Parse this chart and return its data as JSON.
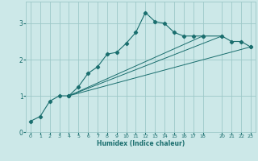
{
  "xlabel": "Humidex (Indice chaleur)",
  "ylabel": "",
  "bg_color": "#cce8e8",
  "grid_color": "#9dc8c8",
  "line_color": "#1a6e6e",
  "xlim": [
    -0.5,
    23.5
  ],
  "ylim": [
    0,
    3.6
  ],
  "xticks": [
    0,
    1,
    2,
    3,
    4,
    5,
    6,
    7,
    8,
    9,
    10,
    11,
    12,
    13,
    14,
    15,
    16,
    17,
    18,
    20,
    21,
    22,
    23
  ],
  "yticks": [
    0,
    1,
    2,
    3
  ],
  "line1_x": [
    0,
    1,
    2,
    3,
    4,
    5,
    6,
    7,
    8,
    9,
    10,
    11,
    12,
    13,
    14,
    15,
    16,
    17,
    18,
    20,
    21,
    22,
    23
  ],
  "line1_y": [
    0.3,
    0.43,
    0.85,
    1.0,
    1.0,
    1.25,
    1.62,
    1.8,
    2.15,
    2.2,
    2.45,
    2.75,
    3.3,
    3.05,
    3.0,
    2.75,
    2.65,
    2.65,
    2.65,
    2.65,
    2.5,
    2.5,
    2.35
  ],
  "line2_x": [
    4,
    23
  ],
  "line2_y": [
    1.0,
    2.35
  ],
  "line3_x": [
    4,
    20
  ],
  "line3_y": [
    1.0,
    2.65
  ],
  "line4_x": [
    4,
    18
  ],
  "line4_y": [
    1.0,
    2.65
  ]
}
